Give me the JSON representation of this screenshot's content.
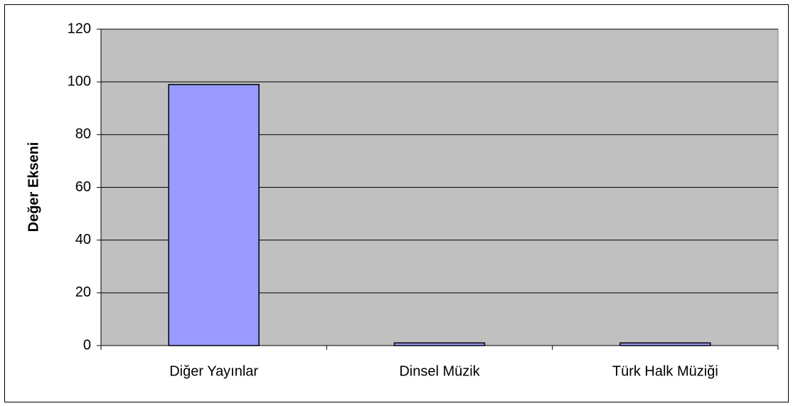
{
  "chart_data": {
    "type": "bar",
    "y_label": "Değer Ekseni",
    "categories": [
      "Diğer Yayınlar",
      "Dinsel Müzik",
      "Türk Halk Müziği"
    ],
    "values": [
      99,
      1,
      1
    ],
    "color": "#9999ff",
    "ylim": [
      0,
      120
    ],
    "yticks": [
      0,
      20,
      40,
      60,
      80,
      100,
      120
    ],
    "grid": true
  }
}
